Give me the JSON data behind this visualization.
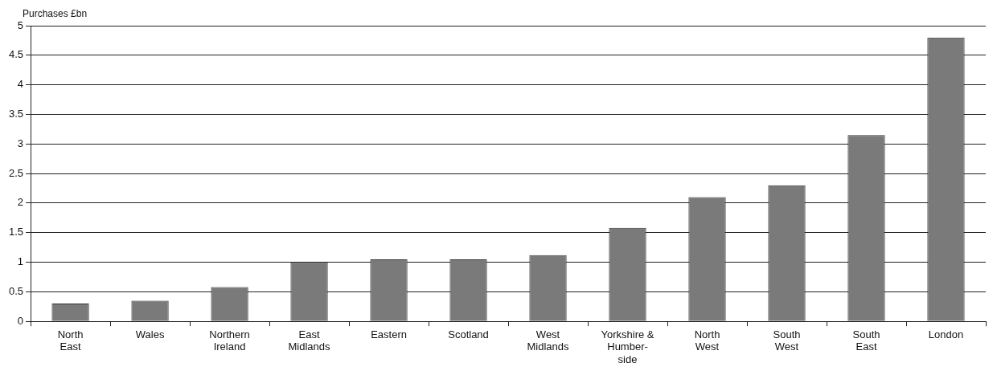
{
  "chart_data": {
    "type": "bar",
    "ylabel": "Purchases £bn",
    "categories": [
      "North\nEast",
      "Wales",
      "Northern\nIreland",
      "East\nMidlands",
      "Eastern",
      "Scotland",
      "West\nMidlands",
      "Yorkshire &\nHumber-\nside",
      "North\nWest",
      "South\nWest",
      "South\nEast",
      "London"
    ],
    "values": [
      0.3,
      0.35,
      0.58,
      1.0,
      1.05,
      1.05,
      1.12,
      1.58,
      2.1,
      2.3,
      3.15,
      4.8
    ],
    "color": "#7a7a7a",
    "ylim": [
      0,
      5
    ],
    "yticks": [
      0,
      0.5,
      1,
      1.5,
      2,
      2.5,
      3,
      3.5,
      4,
      4.5,
      5
    ],
    "grid": "y",
    "legend": false
  }
}
